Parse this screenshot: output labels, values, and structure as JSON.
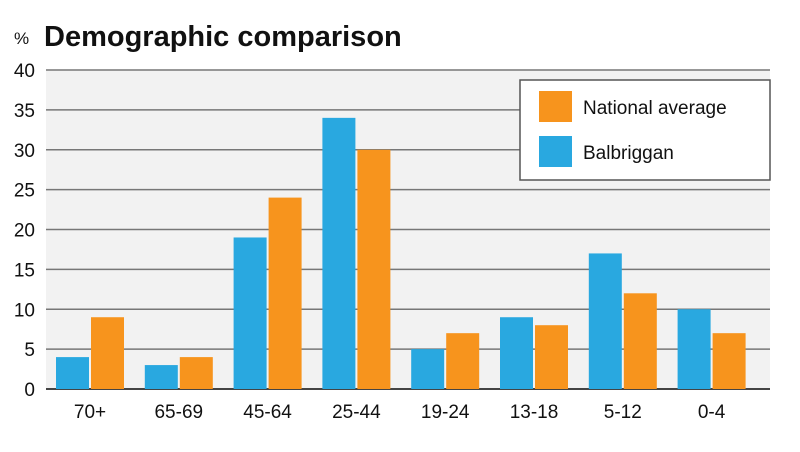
{
  "chart_data": {
    "type": "bar",
    "title": "Demographic comparison",
    "unit_label": "%",
    "categories": [
      "70+",
      "65-69",
      "45-64",
      "25-44",
      "19-24",
      "13-18",
      "5-12",
      "0-4"
    ],
    "series": [
      {
        "name": "Balbriggan",
        "color": "#29a8e0",
        "values": [
          4,
          3,
          19,
          34,
          5,
          9,
          17,
          10
        ]
      },
      {
        "name": "National average",
        "color": "#f7941d",
        "values": [
          9,
          4,
          24,
          30,
          7,
          8,
          12,
          7
        ]
      }
    ],
    "yticks": [
      "0",
      "5",
      "10",
      "15",
      "20",
      "25",
      "30",
      "35",
      "40"
    ],
    "ylim": [
      0,
      40
    ],
    "grid": true,
    "legend_placement": "top-right",
    "legend_order": [
      "National average",
      "Balbriggan"
    ],
    "background_color": "#f2f2f2"
  }
}
